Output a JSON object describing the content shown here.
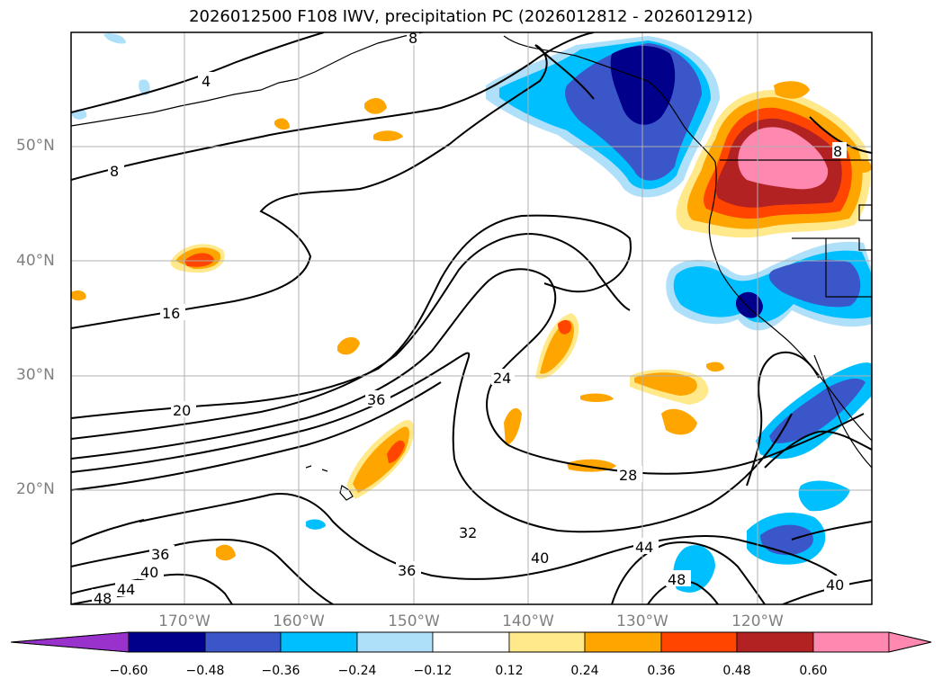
{
  "title": "2026012500 F108 IWV, precipitation PC (2026012812 - 2026012912)",
  "lat_labels": [
    "50°N",
    "40°N",
    "30°N",
    "20°N"
  ],
  "lon_labels": [
    "170°W",
    "160°W",
    "150°W",
    "140°W",
    "130°W",
    "120°W"
  ],
  "contour_labels": [
    "4",
    "8",
    "8",
    "8",
    "16",
    "20",
    "24",
    "28",
    "32",
    "36",
    "36",
    "36",
    "40",
    "40",
    "40",
    "44",
    "44",
    "48",
    "48"
  ],
  "colorbar": {
    "ticks": [
      "−0.60",
      "−0.48",
      "−0.36",
      "−0.24",
      "−0.12",
      "0.12",
      "0.24",
      "0.36",
      "0.48",
      "0.60"
    ],
    "colors": [
      "#9932cc",
      "#00008b",
      "#3a56c9",
      "#00bfff",
      "#afe0fa",
      "#ffffff",
      "#ffe98a",
      "#ffa500",
      "#ff4500",
      "#b22222",
      "#ff88b0"
    ]
  },
  "palette": {
    "neg_strong": "#00008b",
    "neg_mid": "#3a56c9",
    "neg_light": "#00bfff",
    "neg_faint": "#afe0fa",
    "pos_faint": "#ffe98a",
    "pos_light": "#ffa500",
    "pos_mid": "#ff4500",
    "pos_strong": "#b22222",
    "pos_max": "#ff88b0"
  }
}
